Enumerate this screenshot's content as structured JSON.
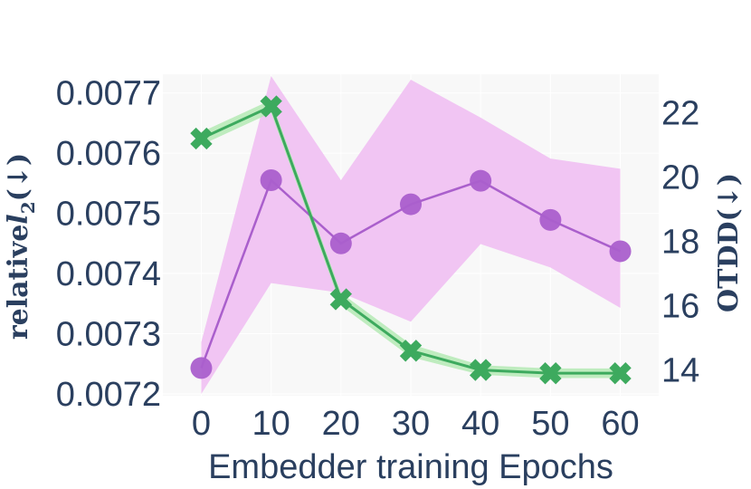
{
  "chart_data": {
    "type": "line",
    "xlabel": "Embedder training Epochs",
    "ylabel_left": "relative",
    "ylabel_left_symbol": "l",
    "ylabel_left_subscript": "2",
    "ylabel_left_suffix": "(↓)",
    "ylabel_right": "OTDD(↓)",
    "x": [
      0,
      10,
      20,
      30,
      40,
      50,
      60
    ],
    "x_ticks": [
      "0",
      "10",
      "20",
      "30",
      "40",
      "50",
      "60"
    ],
    "xlim": [
      -5.5,
      65.5
    ],
    "y_left_ticks": [
      "0.0072",
      "0.0073",
      "0.0074",
      "0.0075",
      "0.0076",
      "0.0077"
    ],
    "y_left_tick_values": [
      0.0072,
      0.0073,
      0.0074,
      0.0075,
      0.0076,
      0.0077
    ],
    "y_left_lim": [
      0.007197,
      0.007731
    ],
    "y_right_ticks": [
      "14",
      "16",
      "18",
      "20",
      "22"
    ],
    "y_right_tick_values": [
      14,
      16,
      18,
      20,
      22
    ],
    "y_right_lim": [
      13.2,
      23.2
    ],
    "grid": true,
    "series": [
      {
        "axis": "left",
        "marker": "circle",
        "color": "#aa5fcc",
        "band_color": "#f0c2f2",
        "values": [
          0.007243,
          0.007555,
          0.00745,
          0.007515,
          0.007554,
          0.007489,
          0.007437
        ],
        "lower": [
          0.0072,
          0.007384,
          0.007368,
          0.00732,
          0.007449,
          0.00741,
          0.007343
        ],
        "upper": [
          0.007286,
          0.007728,
          0.007555,
          0.007722,
          0.007659,
          0.007591,
          0.007574
        ]
      },
      {
        "axis": "right",
        "marker": "x",
        "color": "#3daa5e",
        "band_color": "#b5eab5",
        "values": [
          21.2,
          22.2,
          16.2,
          14.6,
          14.0,
          13.9,
          13.9
        ],
        "lower": [
          21.0,
          22.0,
          16.0,
          14.4,
          13.85,
          13.75,
          13.75
        ],
        "upper": [
          21.4,
          22.4,
          16.4,
          14.8,
          14.15,
          14.05,
          14.05
        ]
      }
    ]
  }
}
